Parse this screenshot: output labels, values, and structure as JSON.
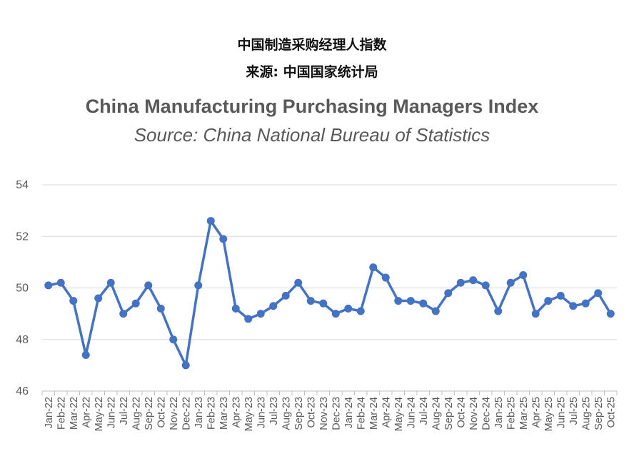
{
  "chart_data": {
    "type": "line",
    "title_cn": "中国制造采购经理人指数",
    "subtitle_cn": "来源: 中国国家统计局",
    "title": "China Manufacturing Purchasing Managers Index",
    "subtitle": "Source:  China National Bureau of Statistics",
    "xlabel": "",
    "ylabel": "",
    "ylim": [
      46,
      54
    ],
    "yticks": [
      "46",
      "48",
      "50",
      "52",
      "54"
    ],
    "grid": true,
    "legend": "none",
    "colors": {
      "line": "#4472C4",
      "grid": "#D9D9D9",
      "text": "#595959"
    },
    "categories": [
      "Jan-22",
      "Feb-22",
      "Mar-22",
      "Apr-22",
      "May-22",
      "Jun-22",
      "Jul-22",
      "Aug-22",
      "Sep-22",
      "Oct-22",
      "Nov-22",
      "Dec-22",
      "Jan-23",
      "Feb-23",
      "Mar-23",
      "Apr-23",
      "May-23",
      "Jun-23",
      "Jul-23",
      "Aug-23",
      "Sep-23",
      "Oct-23",
      "Nov-23",
      "Dec-23",
      "Jan-24",
      "Feb-24",
      "Mar-24",
      "Apr-24",
      "May-24",
      "Jun-24",
      "Jul-24",
      "Aug-24",
      "Sep-24",
      "Oct-24",
      "Nov-24",
      "Dec-24",
      "Jan-25",
      "Feb-25",
      "Mar-25",
      "Apr-25",
      "May-25",
      "Jun-25",
      "Jul-25",
      "Aug-25",
      "Sep-25",
      "Oct-25"
    ],
    "values": [
      50.1,
      50.2,
      49.5,
      47.4,
      49.6,
      50.2,
      49.0,
      49.4,
      50.1,
      49.2,
      48.0,
      47.0,
      50.1,
      52.6,
      51.9,
      49.2,
      48.8,
      49.0,
      49.3,
      49.7,
      50.2,
      49.5,
      49.4,
      49.0,
      49.2,
      49.1,
      50.8,
      50.4,
      49.5,
      49.5,
      49.4,
      49.1,
      49.8,
      50.2,
      50.3,
      50.1,
      49.1,
      50.2,
      50.5,
      49.0,
      49.5,
      49.7,
      49.3,
      49.4,
      49.8,
      49.0
    ]
  }
}
